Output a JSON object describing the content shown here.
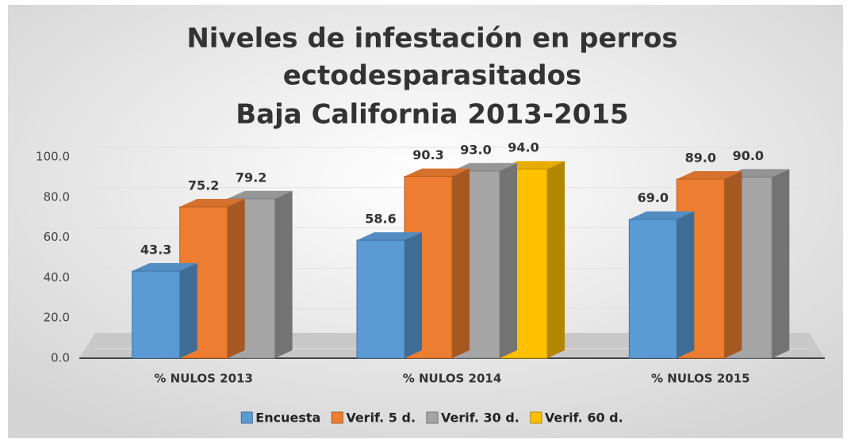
{
  "chart_data": {
    "type": "bar",
    "title": [
      "Niveles de infestación en perros",
      "ectodesparasitados",
      "Baja California 2013-2015"
    ],
    "categories": [
      "% NULOS 2013",
      "% NULOS 2014",
      "% NULOS 2015"
    ],
    "series": [
      {
        "name": "Encuesta",
        "color": "#5b9bd5",
        "values": [
          43.3,
          58.6,
          69.0
        ],
        "value_labels": [
          "43.3",
          "58.6",
          "69.0"
        ]
      },
      {
        "name": "Verif. 5 d.",
        "color": "#ed7d31",
        "values": [
          75.2,
          90.3,
          89.0
        ],
        "value_labels": [
          "75.2",
          "90.3",
          "89.0"
        ]
      },
      {
        "name": "Verif. 30 d.",
        "color": "#a5a5a5",
        "values": [
          79.2,
          93.0,
          90.0
        ],
        "value_labels": [
          "79.2",
          "93.0",
          "90.0"
        ]
      },
      {
        "name": "Verif. 60 d.",
        "color": "#ffc000",
        "values": [
          null,
          94.0,
          null
        ],
        "value_labels": [
          null,
          "94.0",
          null
        ]
      }
    ],
    "ylim": [
      0,
      100
    ],
    "yticks": [
      {
        "value": 0,
        "label": "0.0"
      },
      {
        "value": 20,
        "label": "20.0"
      },
      {
        "value": 40,
        "label": "40.0"
      },
      {
        "value": 60,
        "label": "60.0"
      },
      {
        "value": 80,
        "label": "80.0"
      },
      {
        "value": 100,
        "label": "100.0"
      }
    ],
    "grid": true,
    "legend": "bottom"
  }
}
